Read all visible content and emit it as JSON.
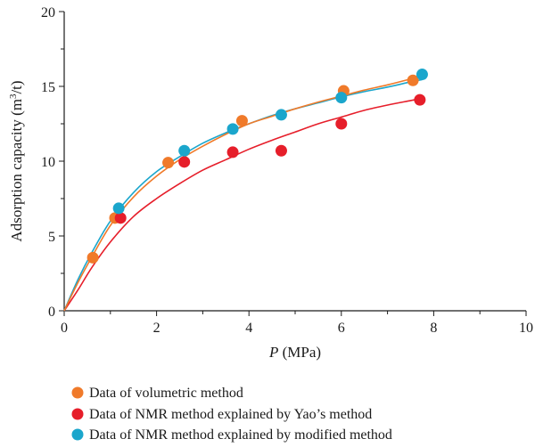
{
  "chart_data": {
    "type": "scatter",
    "xlabel_italic": "P",
    "xlabel_unit": " (MPa)",
    "ylabel_main": "Adsorption capacity (m",
    "ylabel_sup": "3",
    "ylabel_tail": "/t)",
    "xlim": [
      0,
      10
    ],
    "ylim": [
      0,
      20
    ],
    "xticks": [
      "0",
      "2",
      "4",
      "6",
      "8",
      "10"
    ],
    "yticks": [
      "0",
      "5",
      "10",
      "15",
      "20"
    ],
    "grid": false,
    "legend_position": "bottom",
    "series": [
      {
        "name": "Data of volumetric method",
        "color": "#f07a2a",
        "points": [
          [
            0.62,
            3.55
          ],
          [
            1.1,
            6.2
          ],
          [
            2.25,
            9.9
          ],
          [
            3.85,
            12.7
          ],
          [
            6.05,
            14.7
          ],
          [
            7.55,
            15.4
          ]
        ],
        "fit": [
          [
            0,
            0
          ],
          [
            0.3,
            1.9
          ],
          [
            0.6,
            3.6
          ],
          [
            1.0,
            5.7
          ],
          [
            1.5,
            7.6
          ],
          [
            2.0,
            9.0
          ],
          [
            2.5,
            10.1
          ],
          [
            3.0,
            11.0
          ],
          [
            3.5,
            11.8
          ],
          [
            4.0,
            12.5
          ],
          [
            4.5,
            13.0
          ],
          [
            5.0,
            13.5
          ],
          [
            5.5,
            13.95
          ],
          [
            6.0,
            14.35
          ],
          [
            6.5,
            14.75
          ],
          [
            7.0,
            15.1
          ],
          [
            7.5,
            15.5
          ],
          [
            7.6,
            15.6
          ]
        ]
      },
      {
        "name": "Data of NMR method explained by Yao’s method",
        "color": "#e61e2a",
        "points": [
          [
            1.22,
            6.2
          ],
          [
            2.6,
            9.95
          ],
          [
            3.65,
            10.6
          ],
          [
            4.7,
            10.7
          ],
          [
            6.0,
            12.5
          ],
          [
            7.7,
            14.1
          ]
        ],
        "fit": [
          [
            0,
            0
          ],
          [
            0.3,
            1.4
          ],
          [
            0.6,
            2.9
          ],
          [
            1.0,
            4.6
          ],
          [
            1.5,
            6.3
          ],
          [
            2.0,
            7.5
          ],
          [
            2.5,
            8.5
          ],
          [
            3.0,
            9.4
          ],
          [
            3.5,
            10.1
          ],
          [
            4.0,
            10.8
          ],
          [
            4.5,
            11.4
          ],
          [
            5.0,
            11.95
          ],
          [
            5.5,
            12.5
          ],
          [
            6.0,
            12.95
          ],
          [
            6.5,
            13.4
          ],
          [
            7.0,
            13.75
          ],
          [
            7.5,
            14.05
          ],
          [
            7.75,
            14.2
          ]
        ]
      },
      {
        "name": "Data of NMR method explained by modified method",
        "color": "#1ba6cc",
        "points": [
          [
            1.18,
            6.85
          ],
          [
            2.6,
            10.7
          ],
          [
            3.65,
            12.15
          ],
          [
            4.7,
            13.1
          ],
          [
            6.0,
            14.25
          ],
          [
            7.75,
            15.8
          ]
        ],
        "fit": [
          [
            0,
            0
          ],
          [
            0.3,
            2.1
          ],
          [
            0.6,
            3.9
          ],
          [
            1.0,
            6.0
          ],
          [
            1.5,
            7.9
          ],
          [
            2.0,
            9.3
          ],
          [
            2.5,
            10.3
          ],
          [
            3.0,
            11.2
          ],
          [
            3.5,
            11.9
          ],
          [
            4.0,
            12.5
          ],
          [
            4.5,
            13.05
          ],
          [
            5.0,
            13.5
          ],
          [
            5.5,
            13.9
          ],
          [
            6.0,
            14.3
          ],
          [
            6.5,
            14.65
          ],
          [
            7.0,
            14.95
          ],
          [
            7.5,
            15.3
          ],
          [
            7.75,
            15.45
          ]
        ]
      }
    ]
  }
}
